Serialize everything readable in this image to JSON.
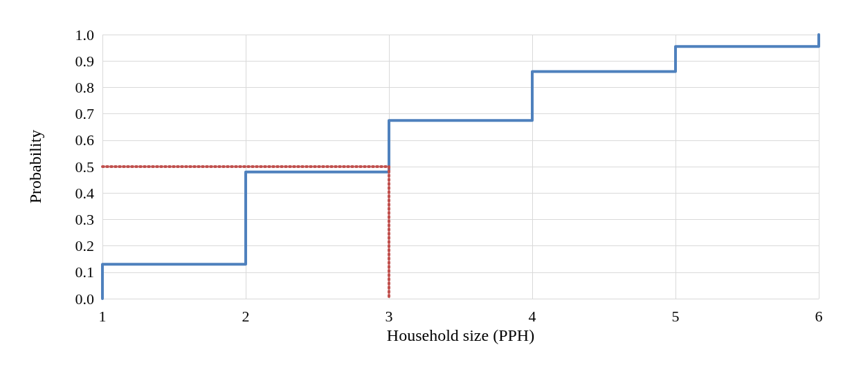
{
  "chart_data": {
    "type": "step",
    "xlabel": "Household size (PPH)",
    "ylabel": "Probability",
    "xlim": [
      1,
      6
    ],
    "xticks": [
      1,
      2,
      3,
      4,
      5,
      6
    ],
    "ylim": [
      0,
      1
    ],
    "yticks": [
      {
        "value": 0,
        "label": "0.0"
      },
      {
        "value": 0.1,
        "label": "0.1"
      },
      {
        "value": 0.2,
        "label": "0.2"
      },
      {
        "value": 0.3,
        "label": "0.3"
      },
      {
        "value": 0.4,
        "label": "0.4"
      },
      {
        "value": 0.5,
        "label": "0.5"
      },
      {
        "value": 0.6,
        "label": "0.6"
      },
      {
        "value": 0.7,
        "label": "0.7"
      },
      {
        "value": 0.8,
        "label": "0.8"
      },
      {
        "value": 0.9,
        "label": "0.9"
      },
      {
        "value": 1,
        "label": "1.0"
      }
    ],
    "grid": true,
    "marker": "none",
    "series": [
      {
        "color": "#4f81bd",
        "line_style": "solid",
        "x": [
          1,
          1,
          2,
          3,
          4,
          5,
          6
        ],
        "values": [
          0,
          0.13,
          0.48,
          0.675,
          0.86,
          0.955,
          1.0
        ]
      },
      {
        "type": "line",
        "color": "#c0504d",
        "line_style": "dotted",
        "x": [
          1,
          3,
          3
        ],
        "values": [
          0.5,
          0.5,
          0
        ]
      }
    ]
  }
}
